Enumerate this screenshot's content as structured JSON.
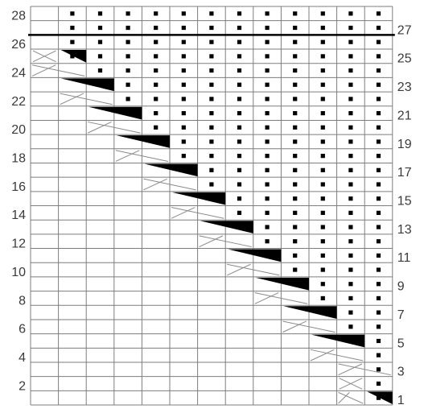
{
  "chart": {
    "columns": 13,
    "rows": 28,
    "left_labels": [
      "2",
      "4",
      "6",
      "8",
      "10",
      "12",
      "14",
      "16",
      "18",
      "20",
      "22",
      "24",
      "26",
      "28"
    ],
    "right_labels": [
      "1",
      "3",
      "5",
      "7",
      "9",
      "11",
      "13",
      "15",
      "17",
      "19",
      "21",
      "23",
      "25",
      "27"
    ],
    "bold_line_below_row": 27
  },
  "symbols": {
    "bobbles": [
      {
        "col": 1,
        "from": 25,
        "to": 28
      },
      {
        "col": 2,
        "from": 23,
        "to": 28
      },
      {
        "col": 3,
        "from": 21,
        "to": 28
      },
      {
        "col": 4,
        "from": 19,
        "to": 28
      },
      {
        "col": 5,
        "from": 17,
        "to": 28
      },
      {
        "col": 6,
        "from": 15,
        "to": 28
      },
      {
        "col": 7,
        "from": 13,
        "to": 28
      },
      {
        "col": 8,
        "from": 11,
        "to": 28
      },
      {
        "col": 9,
        "from": 9,
        "to": 28
      },
      {
        "col": 10,
        "from": 7,
        "to": 28
      },
      {
        "col": 11,
        "from": 5,
        "to": 28
      },
      {
        "col": 12,
        "from": 1,
        "to": 28
      }
    ],
    "wedges": [
      {
        "row": 25,
        "span": [
          1,
          1
        ]
      },
      {
        "row": 23,
        "span": [
          1,
          2
        ]
      },
      {
        "row": 21,
        "span": [
          2,
          3
        ]
      },
      {
        "row": 19,
        "span": [
          3,
          4
        ]
      },
      {
        "row": 17,
        "span": [
          4,
          5
        ]
      },
      {
        "row": 15,
        "span": [
          5,
          6
        ]
      },
      {
        "row": 13,
        "span": [
          6,
          7
        ]
      },
      {
        "row": 11,
        "span": [
          7,
          8
        ]
      },
      {
        "row": 9,
        "span": [
          8,
          9
        ]
      },
      {
        "row": 7,
        "span": [
          9,
          10
        ]
      },
      {
        "row": 5,
        "span": [
          10,
          11
        ]
      },
      {
        "row": 1,
        "span": [
          12,
          12
        ]
      }
    ],
    "crosses": [
      {
        "row": 24,
        "span": [
          0,
          1
        ]
      },
      {
        "row": 22,
        "span": [
          1,
          2
        ]
      },
      {
        "row": 20,
        "span": [
          2,
          3
        ]
      },
      {
        "row": 18,
        "span": [
          3,
          4
        ]
      },
      {
        "row": 16,
        "span": [
          4,
          5
        ]
      },
      {
        "row": 14,
        "span": [
          5,
          6
        ]
      },
      {
        "row": 12,
        "span": [
          6,
          7
        ]
      },
      {
        "row": 10,
        "span": [
          7,
          8
        ]
      },
      {
        "row": 8,
        "span": [
          8,
          9
        ]
      },
      {
        "row": 6,
        "span": [
          9,
          10
        ]
      },
      {
        "row": 4,
        "span": [
          10,
          11
        ]
      },
      {
        "row": 3,
        "span": [
          11,
          12
        ]
      },
      {
        "row": 1,
        "span": [
          11,
          11
        ]
      }
    ],
    "small_crosses": [
      {
        "row": 25,
        "col": 0
      },
      {
        "row": 2,
        "col": 11
      }
    ]
  }
}
